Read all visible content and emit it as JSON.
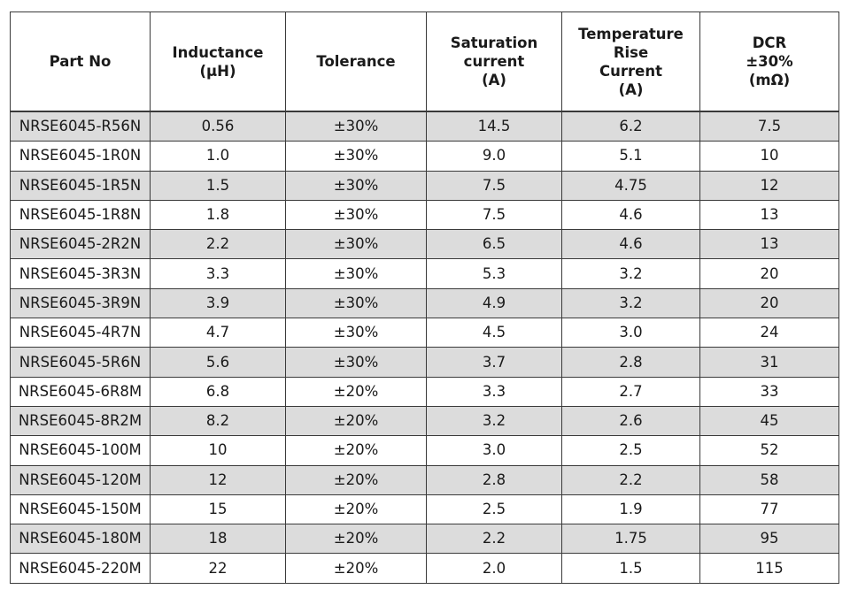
{
  "table": {
    "columns": [
      {
        "key": "part_no",
        "lines": [
          "Part No"
        ]
      },
      {
        "key": "inductance",
        "lines": [
          "Inductance",
          "(μH)"
        ]
      },
      {
        "key": "tolerance",
        "lines": [
          "Tolerance"
        ]
      },
      {
        "key": "saturation",
        "lines": [
          "Saturation",
          "current",
          "(A)"
        ]
      },
      {
        "key": "temp_rise",
        "lines": [
          "Temperature Rise",
          "Current",
          "(A)"
        ]
      },
      {
        "key": "dcr",
        "lines": [
          "DCR",
          "±30%",
          "(mΩ)"
        ]
      }
    ],
    "rows": [
      {
        "part_no": "NRSE6045-R56N",
        "inductance": "0.56",
        "tolerance": "±30%",
        "saturation": "14.5",
        "temp_rise": "6.2",
        "dcr": "7.5"
      },
      {
        "part_no": "NRSE6045-1R0N",
        "inductance": "1.0",
        "tolerance": "±30%",
        "saturation": "9.0",
        "temp_rise": "5.1",
        "dcr": "10"
      },
      {
        "part_no": "NRSE6045-1R5N",
        "inductance": "1.5",
        "tolerance": "±30%",
        "saturation": "7.5",
        "temp_rise": "4.75",
        "dcr": "12"
      },
      {
        "part_no": "NRSE6045-1R8N",
        "inductance": "1.8",
        "tolerance": "±30%",
        "saturation": "7.5",
        "temp_rise": "4.6",
        "dcr": "13"
      },
      {
        "part_no": "NRSE6045-2R2N",
        "inductance": "2.2",
        "tolerance": "±30%",
        "saturation": "6.5",
        "temp_rise": "4.6",
        "dcr": "13"
      },
      {
        "part_no": "NRSE6045-3R3N",
        "inductance": "3.3",
        "tolerance": "±30%",
        "saturation": "5.3",
        "temp_rise": "3.2",
        "dcr": "20"
      },
      {
        "part_no": "NRSE6045-3R9N",
        "inductance": "3.9",
        "tolerance": "±30%",
        "saturation": "4.9",
        "temp_rise": "3.2",
        "dcr": "20"
      },
      {
        "part_no": "NRSE6045-4R7N",
        "inductance": "4.7",
        "tolerance": "±30%",
        "saturation": "4.5",
        "temp_rise": "3.0",
        "dcr": "24"
      },
      {
        "part_no": "NRSE6045-5R6N",
        "inductance": "5.6",
        "tolerance": "±30%",
        "saturation": "3.7",
        "temp_rise": "2.8",
        "dcr": "31"
      },
      {
        "part_no": "NRSE6045-6R8M",
        "inductance": "6.8",
        "tolerance": "±20%",
        "saturation": "3.3",
        "temp_rise": "2.7",
        "dcr": "33"
      },
      {
        "part_no": "NRSE6045-8R2M",
        "inductance": "8.2",
        "tolerance": "±20%",
        "saturation": "3.2",
        "temp_rise": "2.6",
        "dcr": "45"
      },
      {
        "part_no": "NRSE6045-100M",
        "inductance": "10",
        "tolerance": "±20%",
        "saturation": "3.0",
        "temp_rise": "2.5",
        "dcr": "52"
      },
      {
        "part_no": "NRSE6045-120M",
        "inductance": "12",
        "tolerance": "±20%",
        "saturation": "2.8",
        "temp_rise": "2.2",
        "dcr": "58"
      },
      {
        "part_no": "NRSE6045-150M",
        "inductance": "15",
        "tolerance": "±20%",
        "saturation": "2.5",
        "temp_rise": "1.9",
        "dcr": "77"
      },
      {
        "part_no": "NRSE6045-180M",
        "inductance": "18",
        "tolerance": "±20%",
        "saturation": "2.2",
        "temp_rise": "1.75",
        "dcr": "95"
      },
      {
        "part_no": "NRSE6045-220M",
        "inductance": "22",
        "tolerance": "±20%",
        "saturation": "2.0",
        "temp_rise": "1.5",
        "dcr": "115"
      }
    ],
    "shaded_row_color": "#dcdcdc",
    "border_color": "#3a3a3a"
  }
}
